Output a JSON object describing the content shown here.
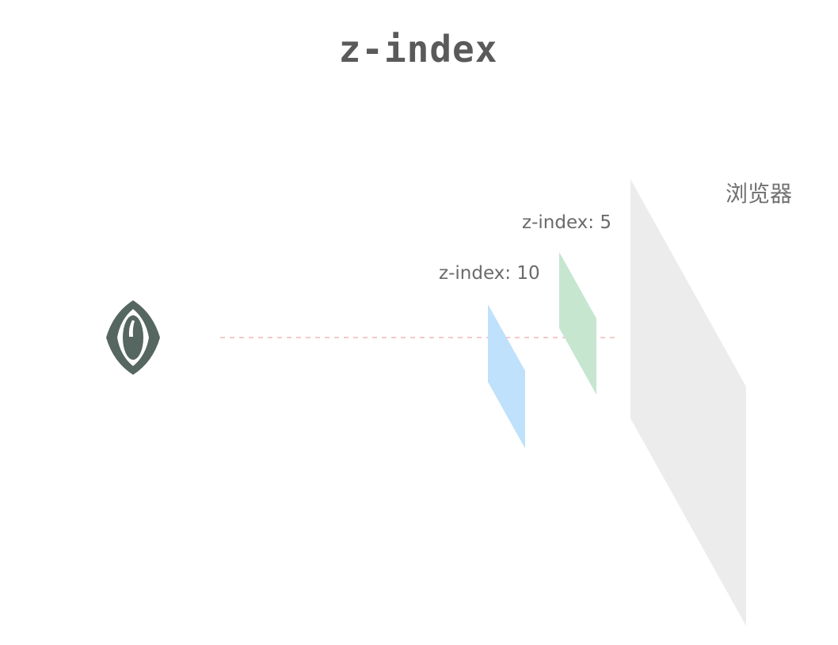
{
  "title": "z-index",
  "viewer": {
    "icon": "eye-icon"
  },
  "layers": [
    {
      "label": "z-index: 10",
      "color": "#bfe1fb"
    },
    {
      "label": "z-index: 5",
      "color": "#c6e6d0"
    }
  ],
  "browser": {
    "label": "浏览器",
    "color": "#ececec"
  },
  "colors": {
    "title": "#5a5a5a",
    "eye": "#566661",
    "sight_line": "#f3c9c9",
    "label": "#6a6a6a",
    "browser_label": "#707070"
  }
}
